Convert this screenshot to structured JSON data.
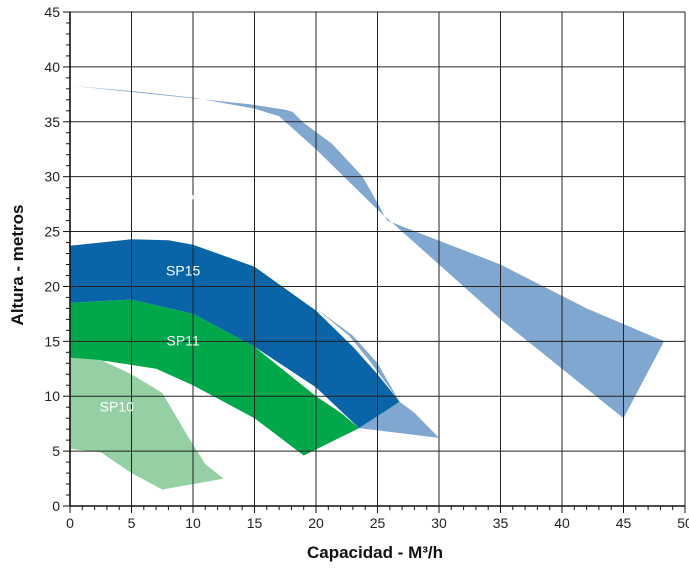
{
  "chart_data": {
    "type": "area",
    "xlabel": "Capacidad - M³/h",
    "ylabel": "Altura - metros",
    "xlim": [
      0,
      50
    ],
    "ylim": [
      0,
      45
    ],
    "x_ticks": [
      "0",
      "5",
      "10",
      "15",
      "20",
      "25",
      "30",
      "35",
      "40",
      "45",
      "50"
    ],
    "y_ticks": [
      "0",
      "5",
      "10",
      "15",
      "20",
      "25",
      "30",
      "35",
      "40",
      "45"
    ],
    "grid": true,
    "series": [
      {
        "name": "SP22",
        "color": "#7fa7cf",
        "label_at": [
          10,
          27.5
        ],
        "outline": [
          [
            0,
            38.3
          ],
          [
            5,
            37.8
          ],
          [
            10,
            37.2
          ],
          [
            15,
            36.2
          ],
          [
            17,
            35.5
          ],
          [
            20,
            32.5
          ],
          [
            25,
            27
          ],
          [
            30,
            22
          ],
          [
            35,
            17
          ],
          [
            40,
            12.5
          ],
          [
            45,
            8
          ],
          [
            48.3,
            15
          ],
          [
            42,
            18
          ],
          [
            35,
            22
          ],
          [
            25.8,
            26
          ],
          [
            23.8,
            30
          ],
          [
            21.3,
            33
          ],
          [
            19,
            34.9
          ],
          [
            18.1,
            35.9
          ],
          [
            17.5,
            36.1
          ],
          [
            14.6,
            36.6
          ],
          [
            0,
            38.3
          ],
          [
            0,
            23.7
          ],
          [
            5,
            24.3
          ],
          [
            10,
            24
          ],
          [
            15,
            22
          ],
          [
            20,
            18
          ],
          [
            23,
            15.5
          ],
          [
            25,
            13
          ],
          [
            26.8,
            9.5
          ],
          [
            28,
            8.5
          ],
          [
            30,
            6.2
          ],
          [
            48.3,
            15
          ],
          [
            30,
            6.2
          ],
          [
            23.5,
            7.1
          ],
          [
            26.8,
            9.5
          ],
          [
            24.5,
            13
          ],
          [
            22.7,
            15.5
          ],
          [
            20,
            18
          ],
          [
            15,
            22
          ],
          [
            10,
            24
          ],
          [
            5,
            24.3
          ],
          [
            0,
            23.7
          ]
        ]
      },
      {
        "name": "SP15",
        "color": "#0a64a8",
        "label_at": [
          9.2,
          21
        ],
        "outline": [
          [
            0,
            23.7
          ],
          [
            5,
            24.3
          ],
          [
            8,
            24.2
          ],
          [
            10,
            23.8
          ],
          [
            15,
            21.8
          ],
          [
            20,
            17.8
          ],
          [
            23,
            14.5
          ],
          [
            25,
            12
          ],
          [
            26.8,
            9.5
          ],
          [
            23.5,
            7.1
          ],
          [
            20,
            10.8
          ],
          [
            15,
            14.5
          ],
          [
            10,
            17.5
          ],
          [
            5,
            18.8
          ],
          [
            0,
            18.5
          ]
        ]
      },
      {
        "name": "SP11",
        "color": "#00a849",
        "label_at": [
          9.2,
          14.6
        ],
        "outline": [
          [
            0,
            18.5
          ],
          [
            5,
            18.8
          ],
          [
            10,
            17.5
          ],
          [
            15,
            14.5
          ],
          [
            18,
            11.8
          ],
          [
            20,
            10
          ],
          [
            22,
            8.5
          ],
          [
            23.5,
            7.1
          ],
          [
            19,
            4.6
          ],
          [
            15,
            8
          ],
          [
            10,
            11
          ],
          [
            7,
            12.5
          ],
          [
            3,
            13.2
          ],
          [
            0,
            13.5
          ]
        ]
      },
      {
        "name": "SP10",
        "color": "#94d0a3",
        "label_at": [
          3.8,
          8.6
        ],
        "outline": [
          [
            0,
            13.5
          ],
          [
            2.5,
            13.3
          ],
          [
            5,
            12
          ],
          [
            7.5,
            10.3
          ],
          [
            9.5,
            6.5
          ],
          [
            11,
            3.8
          ],
          [
            12.5,
            2.5
          ],
          [
            7.5,
            1.5
          ],
          [
            5,
            3
          ],
          [
            2.5,
            4.9
          ],
          [
            0,
            5.2
          ]
        ]
      }
    ]
  }
}
